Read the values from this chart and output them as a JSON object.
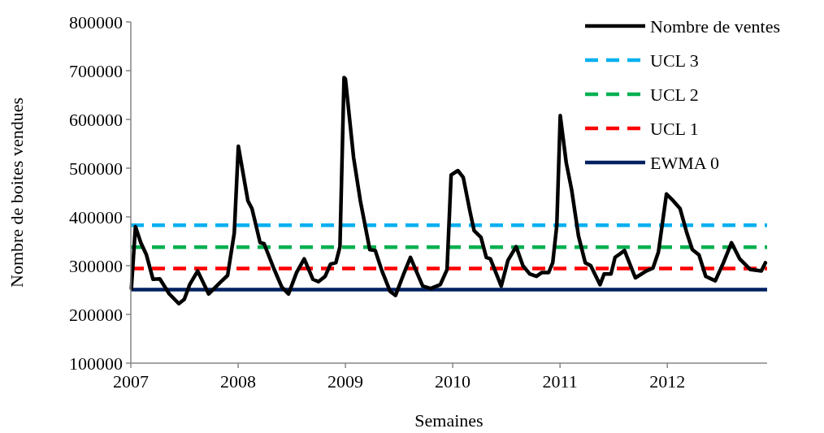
{
  "chart_data": {
    "type": "line",
    "xlabel": "Semaines",
    "ylabel": "Nombre de boites vendues",
    "xlim": [
      2007,
      2012.93
    ],
    "xticks": [
      2007,
      2008,
      2009,
      2010,
      2011,
      2012
    ],
    "ylim": [
      100000,
      800000
    ],
    "yticks": [
      100000,
      200000,
      300000,
      400000,
      500000,
      600000,
      700000,
      800000
    ],
    "grid": false,
    "legend": "top right",
    "line_style": "solid",
    "marker": "none",
    "series": [
      {
        "name": "Nombre de ventes",
        "color": "#000000",
        "x": [
          2007.005,
          2007.043,
          2007.093,
          2007.144,
          2007.207,
          2007.27,
          2007.358,
          2007.447,
          2007.498,
          2007.548,
          2007.623,
          2007.725,
          2007.839,
          2007.902,
          2007.964,
          2008.002,
          2008.091,
          2008.129,
          2008.205,
          2008.242,
          2008.331,
          2008.407,
          2008.47,
          2008.545,
          2008.616,
          2008.697,
          2008.748,
          2008.811,
          2008.861,
          2008.911,
          2008.949,
          2008.987,
          2009.0,
          2009.076,
          2009.139,
          2009.227,
          2009.278,
          2009.341,
          2009.417,
          2009.467,
          2009.543,
          2009.606,
          2009.72,
          2009.795,
          2009.884,
          2009.947,
          2009.985,
          2010.048,
          2010.098,
          2010.161,
          2010.199,
          2010.263,
          2010.313,
          2010.351,
          2010.452,
          2010.515,
          2010.591,
          2010.654,
          2010.717,
          2010.78,
          2010.831,
          2010.894,
          2010.932,
          2010.97,
          2011.002,
          2011.058,
          2011.108,
          2011.172,
          2011.235,
          2011.286,
          2011.373,
          2011.411,
          2011.475,
          2011.513,
          2011.601,
          2011.702,
          2011.803,
          2011.866,
          2011.917,
          2011.992,
          2012.055,
          2012.119,
          2012.182,
          2012.233,
          2012.295,
          2012.358,
          2012.447,
          2012.523,
          2012.598,
          2012.674,
          2012.775,
          2012.876,
          2012.914
        ],
        "values": [
          253000,
          380000,
          347000,
          323000,
          272000,
          273000,
          242000,
          222000,
          231000,
          261000,
          289000,
          242000,
          267000,
          280000,
          367000,
          545000,
          433000,
          417000,
          347000,
          345000,
          295000,
          256000,
          242000,
          286000,
          314000,
          272000,
          267000,
          278000,
          303000,
          306000,
          339000,
          686000,
          683000,
          522000,
          433000,
          333000,
          331000,
          289000,
          247000,
          239000,
          283000,
          317000,
          258000,
          253000,
          261000,
          292000,
          486000,
          495000,
          481000,
          411000,
          372000,
          358000,
          317000,
          314000,
          258000,
          311000,
          339000,
          300000,
          283000,
          278000,
          286000,
          286000,
          306000,
          383000,
          608000,
          511000,
          456000,
          361000,
          306000,
          300000,
          261000,
          283000,
          283000,
          317000,
          331000,
          275000,
          289000,
          295000,
          328000,
          447000,
          433000,
          417000,
          367000,
          333000,
          322000,
          278000,
          269000,
          306000,
          347000,
          314000,
          292000,
          289000,
          306000
        ]
      }
    ],
    "ref_lines": [
      {
        "axis": "y",
        "value": 383000,
        "label": "UCL 3",
        "color": "#00b0f0",
        "line_style": "dashed"
      },
      {
        "axis": "y",
        "value": 338000,
        "label": "UCL 2",
        "color": "#00b050",
        "line_style": "dashed"
      },
      {
        "axis": "y",
        "value": 294000,
        "label": "UCL 1",
        "color": "#ff0000",
        "line_style": "dashed"
      },
      {
        "axis": "y",
        "value": 251000,
        "label": "EWMA 0",
        "color": "#002060",
        "line_style": "solid"
      }
    ]
  }
}
